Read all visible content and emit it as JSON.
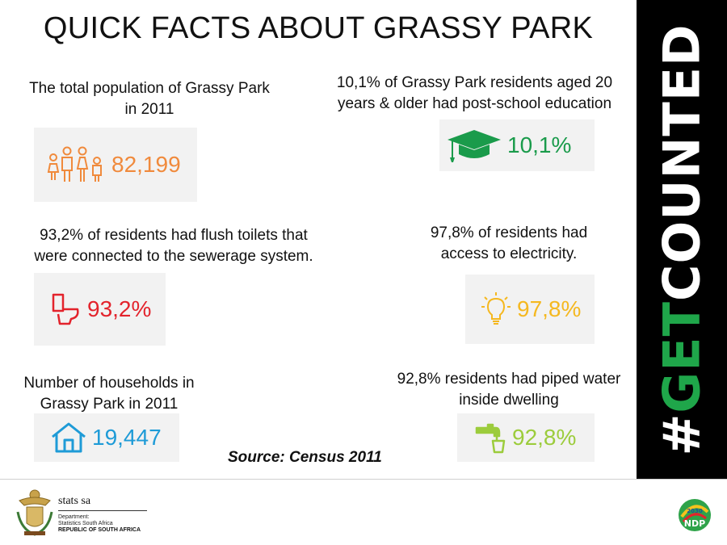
{
  "title": "QUICK FACTS ABOUT GRASSY PARK",
  "facts": {
    "population": {
      "caption_l1": "The total population of Grassy Park",
      "caption_l2": "in 2011",
      "value": "82,199",
      "color": "#f08a3c",
      "icon": "people-icon"
    },
    "education": {
      "caption_l1": "10,1% of Grassy Park residents aged 20",
      "caption_l2": "years & older had post-school education",
      "value": "10,1%",
      "color": "#1a9b4b",
      "icon": "graduation-cap-icon"
    },
    "toilets": {
      "caption_l1": "93,2% of residents had flush toilets that",
      "caption_l2": "were connected to the sewerage system.",
      "value": "93,2%",
      "color": "#e3232c",
      "icon": "toilet-icon"
    },
    "electricity": {
      "caption_l1": "97,8% of residents had",
      "caption_l2": "access to electricity.",
      "value": "97,8%",
      "color": "#f5b820",
      "icon": "lightbulb-icon"
    },
    "households": {
      "caption_l1": "Number of households in",
      "caption_l2": "Grassy Park in 2011",
      "value": "19,447",
      "color": "#1e9bd7",
      "icon": "house-icon"
    },
    "water": {
      "caption_l1": "92,8% residents had piped water",
      "caption_l2": "inside dwelling",
      "value": "92,8%",
      "color": "#9ccc3c",
      "icon": "tap-icon"
    }
  },
  "source": "Source: Census 2011",
  "side_banner": {
    "prefix": "#",
    "highlight": "GET",
    "rest": "COUNTED",
    "highlight_color": "#1fa64a"
  },
  "logo": {
    "brand": "stats sa",
    "line1": "Department:",
    "line2": "Statistics South Africa",
    "line3": "REPUBLIC OF SOUTH AFRICA"
  },
  "ndp": {
    "year": "2030",
    "label": "NDP"
  }
}
